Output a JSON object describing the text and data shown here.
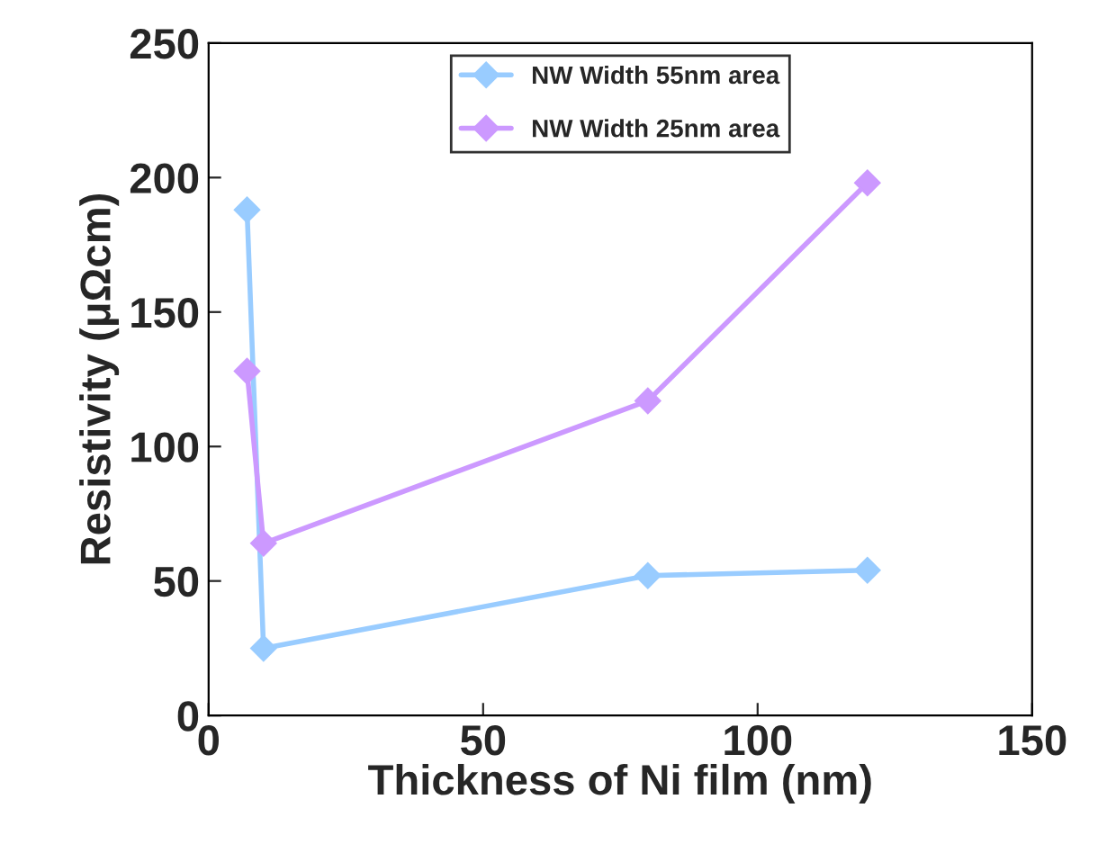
{
  "chart_data": {
    "type": "line",
    "xlabel": "Thickness of Ni film (nm)",
    "ylabel": "Resistivity (μΩcm)",
    "x": [
      7,
      10,
      80,
      120
    ],
    "series": [
      {
        "name": "NW Width 55nm area",
        "color": "#99ccff",
        "values": [
          188,
          25,
          52,
          54
        ]
      },
      {
        "name": "NW Width 25nm area",
        "color": "#cc99ff",
        "values": [
          128,
          64,
          117,
          198
        ]
      }
    ],
    "xlim": [
      0,
      150
    ],
    "xticks": [
      0,
      50,
      100,
      150
    ],
    "ylim": [
      0,
      250
    ],
    "yticks": [
      0,
      50,
      100,
      150,
      200,
      250
    ],
    "grid": false,
    "legend": "top",
    "marker": "diamond",
    "line_style": "solid"
  }
}
